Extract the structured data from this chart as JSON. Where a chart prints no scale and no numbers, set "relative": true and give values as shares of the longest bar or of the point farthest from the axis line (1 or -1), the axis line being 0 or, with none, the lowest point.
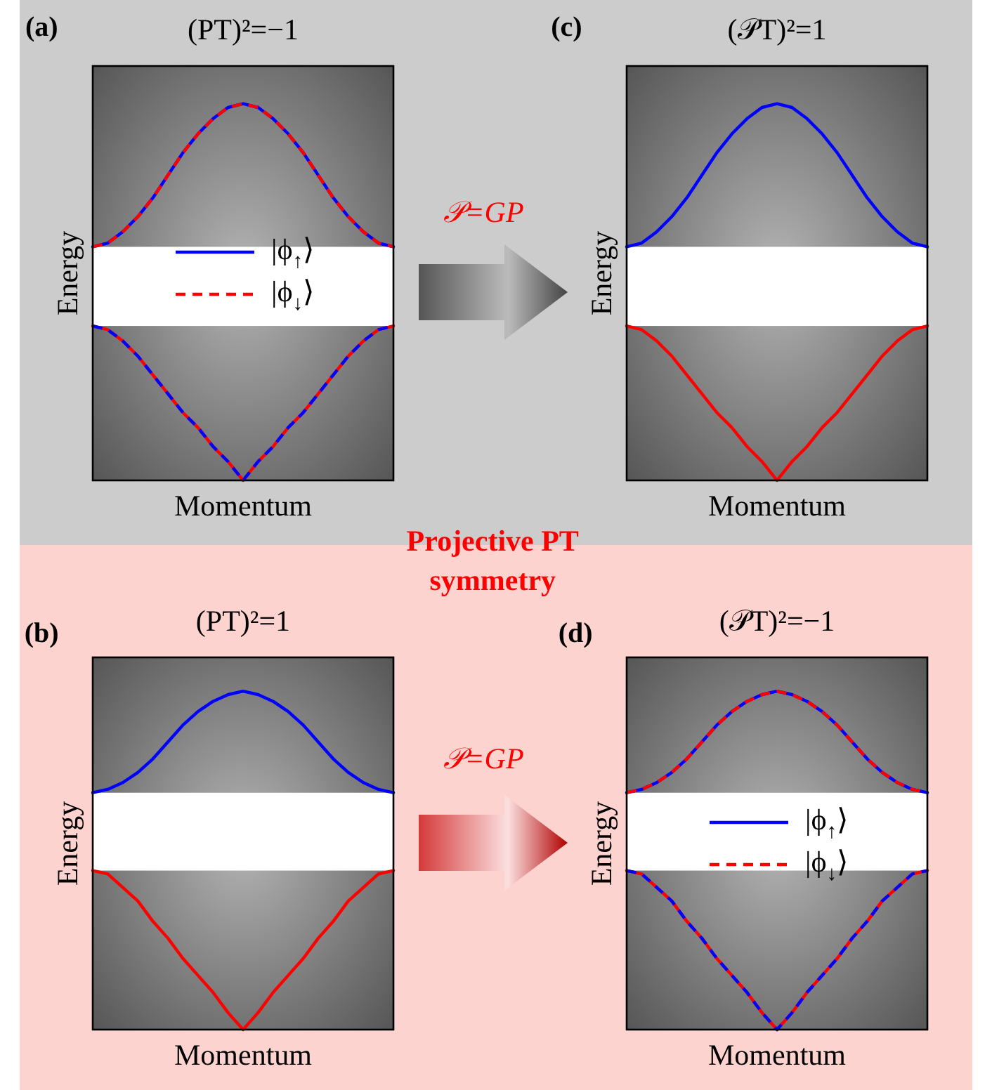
{
  "chart_data": [
    {
      "type": "line",
      "title": "(PT)²=−1",
      "xlabel": "Momentum",
      "ylabel": "Energy",
      "relative": true,
      "legend": "center",
      "categories": [
        null,
        null,
        null,
        null,
        null,
        null,
        null,
        null,
        null,
        null,
        null,
        null,
        null,
        null,
        null,
        null,
        null,
        null,
        null,
        null,
        null
      ],
      "bands": [
        {
          "axis": "y",
          "from": 0.41,
          "to": 0.62,
          "color": "#ffffff"
        }
      ],
      "series": [
        {
          "name": "|ϕ$_{↑}$⟩",
          "color": "#0000ff",
          "line_style": "solid",
          "values": [
            0.62,
            0.63,
            0.66,
            0.7,
            0.75,
            0.81,
            0.87,
            0.92,
            0.96,
            0.99,
            1.0,
            0.99,
            0.96,
            0.92,
            0.87,
            0.81,
            0.75,
            0.7,
            0.66,
            0.63,
            0.62
          ]
        },
        {
          "name": "|ϕ$_{↓}$⟩",
          "color": "#ff0000",
          "line_style": "dashed",
          "values": [
            0.62,
            0.63,
            0.66,
            0.7,
            0.75,
            0.81,
            0.87,
            0.92,
            0.96,
            0.99,
            1.0,
            0.99,
            0.96,
            0.92,
            0.87,
            0.81,
            0.75,
            0.7,
            0.66,
            0.63,
            0.62
          ]
        },
        {
          "color": "#ff0000",
          "line_style": "solid",
          "values": [
            0.41,
            0.4,
            0.37,
            0.33,
            0.28,
            0.23,
            0.18,
            0.14,
            0.09,
            0.05,
            0.0,
            0.05,
            0.09,
            0.14,
            0.18,
            0.23,
            0.28,
            0.33,
            0.37,
            0.4,
            0.41
          ]
        },
        {
          "color": "#0000ff",
          "line_style": "dashed",
          "values": [
            0.41,
            0.4,
            0.37,
            0.33,
            0.28,
            0.23,
            0.18,
            0.14,
            0.09,
            0.05,
            0.0,
            0.05,
            0.09,
            0.14,
            0.18,
            0.23,
            0.28,
            0.33,
            0.37,
            0.4,
            0.41
          ]
        }
      ],
      "annotations": [
        "(a)",
        "𝒫=GP",
        "Projective PT\nsymmetry"
      ]
    },
    {
      "type": "line",
      "title": "(𝒫T)²=1",
      "xlabel": "Momentum",
      "ylabel": "Energy",
      "relative": true,
      "categories": [
        null,
        null,
        null,
        null,
        null,
        null,
        null,
        null,
        null,
        null,
        null,
        null,
        null,
        null,
        null,
        null,
        null,
        null,
        null,
        null,
        null
      ],
      "bands": [
        {
          "axis": "y",
          "from": 0.41,
          "to": 0.62,
          "color": "#ffffff"
        }
      ],
      "series": [
        {
          "color": "#0000ff",
          "line_style": "solid",
          "values": [
            0.62,
            0.63,
            0.66,
            0.7,
            0.75,
            0.81,
            0.87,
            0.92,
            0.96,
            0.99,
            1.0,
            0.99,
            0.96,
            0.92,
            0.87,
            0.81,
            0.75,
            0.7,
            0.66,
            0.63,
            0.62
          ]
        },
        {
          "color": "#ff0000",
          "line_style": "solid",
          "values": [
            0.41,
            0.4,
            0.37,
            0.33,
            0.28,
            0.23,
            0.18,
            0.14,
            0.09,
            0.05,
            0.0,
            0.05,
            0.09,
            0.14,
            0.18,
            0.23,
            0.28,
            0.33,
            0.37,
            0.4,
            0.41
          ]
        }
      ],
      "annotations": [
        "(c)"
      ]
    },
    {
      "type": "line",
      "title": "(PT)²=1",
      "xlabel": "Momentum",
      "ylabel": "Energy",
      "relative": true,
      "categories": [
        null,
        null,
        null,
        null,
        null,
        null,
        null,
        null,
        null,
        null,
        null,
        null,
        null,
        null,
        null,
        null,
        null,
        null,
        null,
        null,
        null
      ],
      "bands": [
        {
          "axis": "y",
          "from": 0.47,
          "to": 0.7,
          "color": "#ffffff"
        }
      ],
      "series": [
        {
          "color": "#0000ff",
          "line_style": "solid",
          "values": [
            0.7,
            0.71,
            0.73,
            0.76,
            0.8,
            0.85,
            0.9,
            0.94,
            0.97,
            0.99,
            1.0,
            0.99,
            0.97,
            0.94,
            0.9,
            0.85,
            0.8,
            0.76,
            0.73,
            0.71,
            0.7
          ]
        },
        {
          "color": "#ff0000",
          "line_style": "solid",
          "values": [
            0.47,
            0.46,
            0.42,
            0.38,
            0.32,
            0.27,
            0.21,
            0.16,
            0.11,
            0.05,
            0.0,
            0.05,
            0.11,
            0.16,
            0.21,
            0.27,
            0.32,
            0.38,
            0.42,
            0.46,
            0.47
          ]
        }
      ],
      "annotations": [
        "(b)",
        "𝒫=GP"
      ]
    },
    {
      "type": "line",
      "title": "(𝒫T)²=−1",
      "xlabel": "Momentum",
      "ylabel": "Energy",
      "relative": true,
      "legend": "center",
      "categories": [
        null,
        null,
        null,
        null,
        null,
        null,
        null,
        null,
        null,
        null,
        null,
        null,
        null,
        null,
        null,
        null,
        null,
        null,
        null,
        null,
        null
      ],
      "bands": [
        {
          "axis": "y",
          "from": 0.47,
          "to": 0.7,
          "color": "#ffffff"
        }
      ],
      "series": [
        {
          "name": "|ϕ$_{↑}$⟩",
          "color": "#0000ff",
          "line_style": "solid",
          "values": [
            0.7,
            0.71,
            0.73,
            0.76,
            0.8,
            0.85,
            0.9,
            0.94,
            0.97,
            0.99,
            1.0,
            0.99,
            0.97,
            0.94,
            0.9,
            0.85,
            0.8,
            0.76,
            0.73,
            0.71,
            0.7
          ]
        },
        {
          "name": "|ϕ$_{↓}$⟩",
          "color": "#ff0000",
          "line_style": "dashed",
          "values": [
            0.7,
            0.71,
            0.73,
            0.76,
            0.8,
            0.85,
            0.9,
            0.94,
            0.97,
            0.99,
            1.0,
            0.99,
            0.97,
            0.94,
            0.9,
            0.85,
            0.8,
            0.76,
            0.73,
            0.71,
            0.7
          ]
        },
        {
          "color": "#ff0000",
          "line_style": "solid",
          "values": [
            0.47,
            0.46,
            0.42,
            0.38,
            0.32,
            0.27,
            0.21,
            0.16,
            0.11,
            0.05,
            0.0,
            0.05,
            0.11,
            0.16,
            0.21,
            0.27,
            0.32,
            0.38,
            0.42,
            0.46,
            0.47
          ]
        },
        {
          "color": "#0000ff",
          "line_style": "dashed",
          "values": [
            0.47,
            0.46,
            0.42,
            0.38,
            0.32,
            0.27,
            0.21,
            0.16,
            0.11,
            0.05,
            0.0,
            0.05,
            0.11,
            0.16,
            0.21,
            0.27,
            0.32,
            0.38,
            0.42,
            0.46,
            0.47
          ]
        }
      ],
      "annotations": [
        "(d)"
      ]
    }
  ]
}
